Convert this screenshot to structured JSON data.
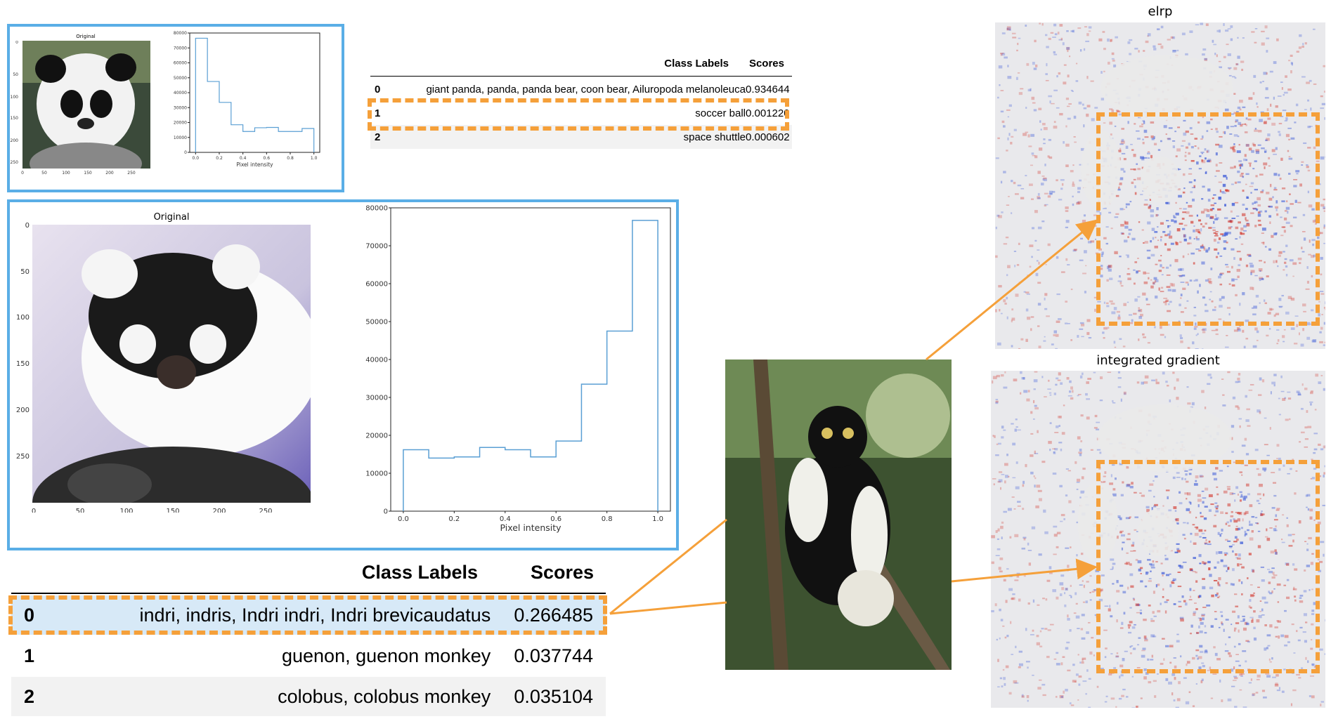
{
  "top_plot": {
    "image_title": "Original",
    "image_xticks": [
      "0",
      "50",
      "100",
      "150",
      "200",
      "250"
    ],
    "image_yticks": [
      "0",
      "50",
      "100",
      "150",
      "200",
      "250"
    ],
    "hist_xlabel": "Pixel intensity",
    "hist_xticks": [
      "0.0",
      "0.2",
      "0.4",
      "0.6",
      "0.8",
      "1.0"
    ],
    "hist_yticks": [
      "0",
      "10000",
      "20000",
      "30000",
      "40000",
      "50000",
      "60000",
      "70000",
      "80000"
    ]
  },
  "top_table": {
    "header_labels": "Class Labels",
    "header_scores": "Scores",
    "rows": [
      {
        "index": "0",
        "label": "giant panda, panda, panda bear, coon bear, Ailuropoda melanoleuca",
        "score": "0.934644"
      },
      {
        "index": "1",
        "label": "soccer ball",
        "score": "0.001220"
      },
      {
        "index": "2",
        "label": "space shuttle",
        "score": "0.000602"
      }
    ]
  },
  "main_plot": {
    "image_title": "Original",
    "image_xticks": [
      "0",
      "50",
      "100",
      "150",
      "200",
      "250"
    ],
    "image_yticks": [
      "0",
      "50",
      "100",
      "150",
      "200",
      "250"
    ],
    "hist_xlabel": "Pixel intensity",
    "hist_xticks": [
      "0.0",
      "0.2",
      "0.4",
      "0.6",
      "0.8",
      "1.0"
    ],
    "hist_yticks": [
      "0",
      "10000",
      "20000",
      "30000",
      "40000",
      "50000",
      "60000",
      "70000",
      "80000"
    ]
  },
  "bottom_table": {
    "header_labels": "Class Labels",
    "header_scores": "Scores",
    "rows": [
      {
        "index": "0",
        "label": "indri, indris, Indri indri, Indri brevicaudatus",
        "score": "0.266485"
      },
      {
        "index": "1",
        "label": "guenon, guenon monkey",
        "score": "0.037744"
      },
      {
        "index": "2",
        "label": "colobus, colobus monkey",
        "score": "0.035104"
      }
    ]
  },
  "heatmaps": {
    "top_title": "elrp",
    "bottom_title": "integrated gradient"
  },
  "colors": {
    "frame": "#5aaee6",
    "highlight": "#f5a03a",
    "row_selected": "#d7e9f7",
    "row_stripe": "#f2f2f2",
    "hist_line": "#5a9fd4"
  },
  "chart_data": [
    {
      "type": "bar",
      "chart": "top histogram",
      "xlabel": "Pixel intensity",
      "xlim": [
        0,
        1
      ],
      "ylim": [
        0,
        80000
      ],
      "categories": [
        "0.0-0.1",
        "0.1-0.2",
        "0.2-0.3",
        "0.3-0.4",
        "0.4-0.5",
        "0.5-0.6",
        "0.6-0.7",
        "0.7-0.8",
        "0.8-0.9",
        "0.9-1.0"
      ],
      "values": [
        76500,
        47500,
        33500,
        18500,
        14000,
        16500,
        16700,
        14000,
        14000,
        16000
      ]
    },
    {
      "type": "bar",
      "chart": "main histogram",
      "xlabel": "Pixel intensity",
      "xlim": [
        0,
        1
      ],
      "ylim": [
        0,
        80000
      ],
      "categories": [
        "0.0-0.1",
        "0.1-0.2",
        "0.2-0.3",
        "0.3-0.4",
        "0.4-0.5",
        "0.5-0.6",
        "0.6-0.7",
        "0.7-0.8",
        "0.8-0.9",
        "0.9-1.0"
      ],
      "values": [
        16200,
        14000,
        14300,
        16800,
        16200,
        14300,
        18500,
        33500,
        47500,
        76700
      ]
    }
  ]
}
